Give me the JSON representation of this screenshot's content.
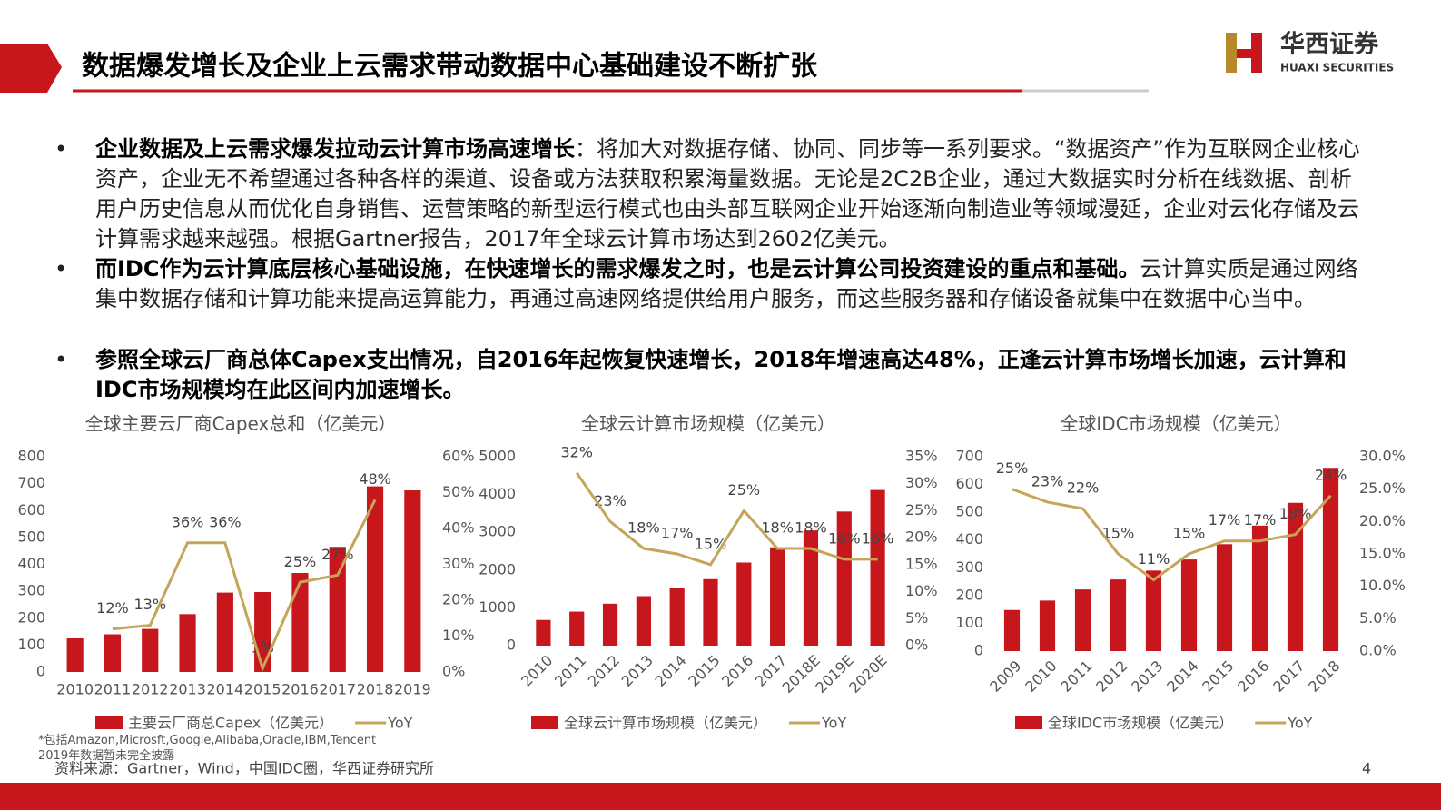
{
  "header": {
    "title": "数据爆发增长及企业上云需求带动数据中心基础建设不断扩张",
    "logo_cn": "华西证券",
    "logo_en": "HUAXI SECURITIES"
  },
  "bullets": [
    {
      "bold": "企业数据及上云需求爆发拉动云计算市场高速增长",
      "text": "：将加大对数据存储、协同、同步等一系列要求。“数据资产”作为互联网企业核心资产，企业无不希望通过各种各样的渠道、设备或方法获取积累海量数据。无论是2C2B企业，通过大数据实时分析在线数据、剖析用户历史信息从而优化自身销售、运营策略的新型运行模式也由头部互联网企业开始逐渐向制造业等领域漫延，企业对云化存储及云计算需求越来越强。根据Gartner报告，2017年全球云计算市场达到2602亿美元。"
    },
    {
      "bold": "而IDC作为云计算底层核心基础设施，在快速增长的需求爆发之时，也是云计算公司投资建设的重点和基础。",
      "text": "云计算实质是通过网络集中数据存储和计算功能来提高运算能力，再通过高速网络提供给用户服务，而这些服务器和存储设备就集中在数据中心当中。"
    },
    {
      "bold": "参照全球云厂商总体Capex支出情况，自2016年起恢复快速增长，2018年增速高达48%，正逢云计算市场增长加速，云计算和IDC市场规模均在此区间内加速增长。",
      "text": ""
    }
  ],
  "chart_data": [
    {
      "type": "combo",
      "title": "全球主要云厂商Capex总和（亿美元）",
      "categories": [
        "2010",
        "2011",
        "2012",
        "2013",
        "2014",
        "2015",
        "2016",
        "2017",
        "2018",
        "2019"
      ],
      "series": [
        {
          "name": "主要云厂商总Capex（亿美元）",
          "type": "bar",
          "color": "#c8161d",
          "values": [
            125,
            140,
            160,
            215,
            295,
            297,
            368,
            465,
            690,
            675
          ]
        },
        {
          "name": "YoY",
          "type": "line",
          "axis": "y2",
          "color": "#c5a55a",
          "values": [
            null,
            12,
            13,
            36,
            36,
            1,
            25,
            27,
            48,
            null
          ],
          "value_labels": [
            null,
            "12%",
            "13%",
            "36%",
            "36%",
            "1%",
            "25%",
            "27%",
            "48%",
            null
          ]
        }
      ],
      "ylim": [
        0,
        800
      ],
      "yticks": [
        0,
        100,
        200,
        300,
        400,
        500,
        600,
        700,
        800
      ],
      "y2lim": [
        0,
        60
      ],
      "y2ticks": [
        {
          "value": 0,
          "label": "0%"
        },
        {
          "value": 10,
          "label": "10%"
        },
        {
          "value": 20,
          "label": "20%"
        },
        {
          "value": 30,
          "label": "30%"
        },
        {
          "value": 40,
          "label": "40%"
        },
        {
          "value": 50,
          "label": "50%"
        },
        {
          "value": 60,
          "label": "60%"
        }
      ],
      "note": "*包括Amazon,Microsft,Google,Alibaba,Oracle,IBM,Tencent\n2019年数据暂未完全披露"
    },
    {
      "type": "combo",
      "title": "全球云计算市场规模（亿美元）",
      "categories": [
        "2010",
        "2011",
        "2012",
        "2013",
        "2014",
        "2015",
        "2016",
        "2017",
        "2018E",
        "2019E",
        "2020E"
      ],
      "series": [
        {
          "name": "全球云计算市场规模（亿美元）",
          "type": "bar",
          "color": "#c8161d",
          "values": [
            680,
            900,
            1110,
            1310,
            1530,
            1760,
            2200,
            2602,
            3050,
            3550,
            4120
          ]
        },
        {
          "name": "YoY",
          "type": "line",
          "axis": "y2",
          "color": "#c5a55a",
          "values": [
            null,
            32,
            23,
            18,
            17,
            15,
            25,
            18,
            18,
            16,
            16
          ],
          "value_labels": [
            null,
            "32%",
            "23%",
            "18%",
            "17%",
            "15%",
            "25%",
            "18%",
            "18%",
            "16%",
            "16%"
          ]
        }
      ],
      "ylim": [
        0,
        5000
      ],
      "yticks": [
        0,
        1000,
        2000,
        3000,
        4000,
        5000
      ],
      "y2lim": [
        0,
        35
      ],
      "y2ticks": [
        {
          "value": 0,
          "label": "0%"
        },
        {
          "value": 5,
          "label": "5%"
        },
        {
          "value": 10,
          "label": "10%"
        },
        {
          "value": 15,
          "label": "15%"
        },
        {
          "value": 20,
          "label": "20%"
        },
        {
          "value": 25,
          "label": "25%"
        },
        {
          "value": 30,
          "label": "30%"
        },
        {
          "value": 35,
          "label": "35%"
        }
      ]
    },
    {
      "type": "combo",
      "title": "全球IDC市场规模（亿美元）",
      "categories": [
        "2009",
        "2010",
        "2011",
        "2012",
        "2013",
        "2014",
        "2015",
        "2016",
        "2017",
        "2018"
      ],
      "series": [
        {
          "name": "全球IDC市场规模（亿美元）",
          "type": "bar",
          "color": "#c8161d",
          "values": [
            148,
            182,
            222,
            258,
            290,
            330,
            385,
            452,
            534,
            660
          ]
        },
        {
          "name": "YoY",
          "type": "line",
          "axis": "y2",
          "color": "#c5a55a",
          "values": [
            25,
            23,
            22,
            15,
            11,
            15,
            17,
            17,
            18,
            24
          ],
          "value_labels": [
            "25%",
            "23%",
            "22%",
            "15%",
            "11%",
            "15%",
            "17%",
            "17%",
            "18%",
            "24%"
          ]
        }
      ],
      "ylim": [
        0,
        700
      ],
      "yticks": [
        0,
        100,
        200,
        300,
        400,
        500,
        600,
        700
      ],
      "y2lim": [
        0,
        30
      ],
      "y2ticks": [
        {
          "value": 0,
          "label": "0.0%"
        },
        {
          "value": 5,
          "label": "5.0%"
        },
        {
          "value": 10,
          "label": "10.0%"
        },
        {
          "value": 15,
          "label": "15.0%"
        },
        {
          "value": 20,
          "label": "20.0%"
        },
        {
          "value": 25,
          "label": "25.0%"
        },
        {
          "value": 30,
          "label": "30.0%"
        }
      ]
    }
  ],
  "footer": {
    "source": "资料来源：Gartner，Wind，中国IDC圈，华西证券研究所",
    "page": "4"
  }
}
